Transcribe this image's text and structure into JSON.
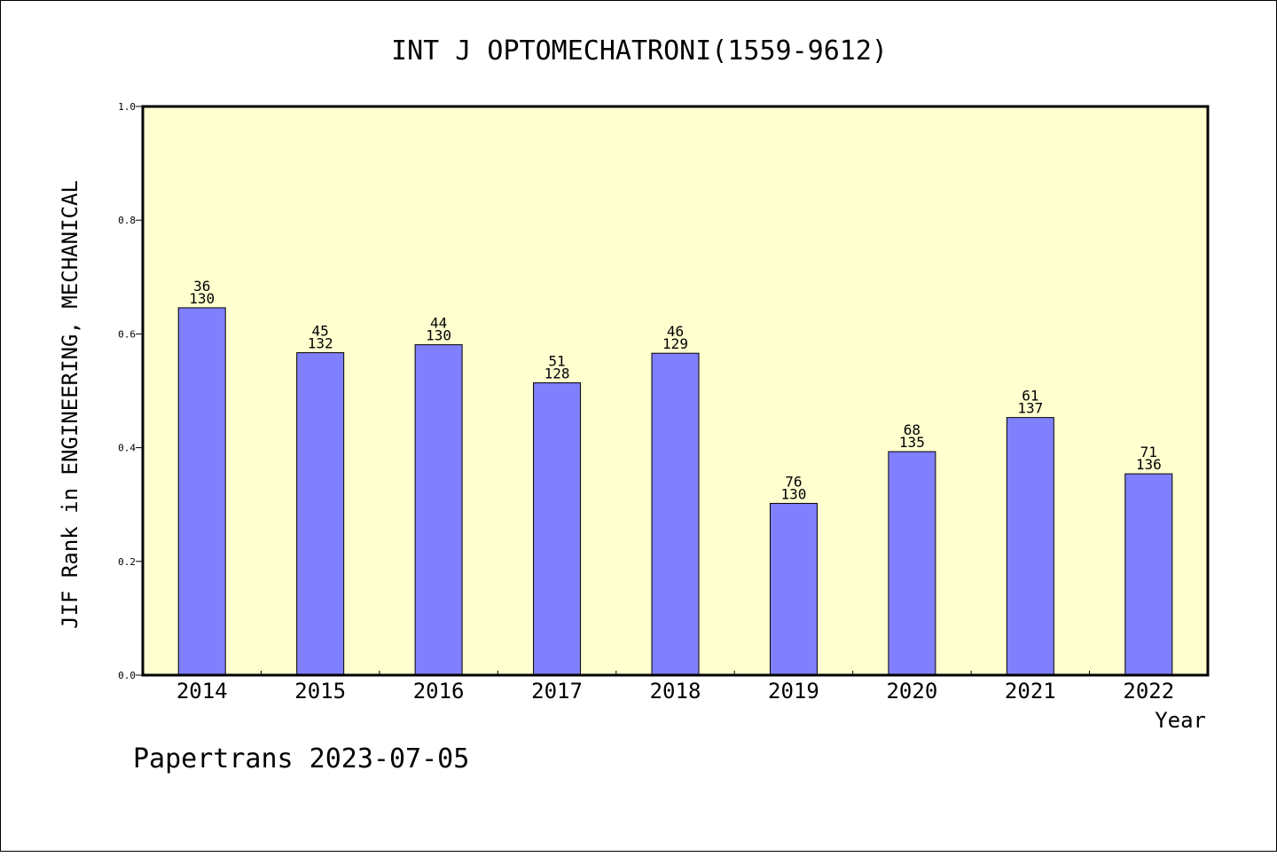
{
  "chart_data": {
    "type": "bar",
    "title": "INT J OPTOMECHATRONI(1559-9612)",
    "xlabel": "Year",
    "ylabel": "JIF Rank in ENGINEERING, MECHANICAL",
    "ylim": [
      0,
      1.0
    ],
    "yticks": [
      "0.0",
      "0.2",
      "0.4",
      "0.6",
      "0.8",
      "1.0"
    ],
    "categories": [
      "2014",
      "2015",
      "2016",
      "2017",
      "2018",
      "2019",
      "2020",
      "2021",
      "2022"
    ],
    "values": [
      0.646,
      0.567,
      0.581,
      0.514,
      0.566,
      0.302,
      0.393,
      0.453,
      0.354
    ],
    "rank": [
      "36",
      "45",
      "44",
      "51",
      "46",
      "76",
      "68",
      "61",
      "71"
    ],
    "total": [
      "130",
      "132",
      "130",
      "128",
      "129",
      "130",
      "135",
      "137",
      "136"
    ],
    "grid": false,
    "legend": "none",
    "colors": {
      "plot_background": "#ffffd0",
      "bar_fill": "#8080ff",
      "bar_stroke": "#000000"
    }
  },
  "footer": "Papertrans 2023-07-05"
}
